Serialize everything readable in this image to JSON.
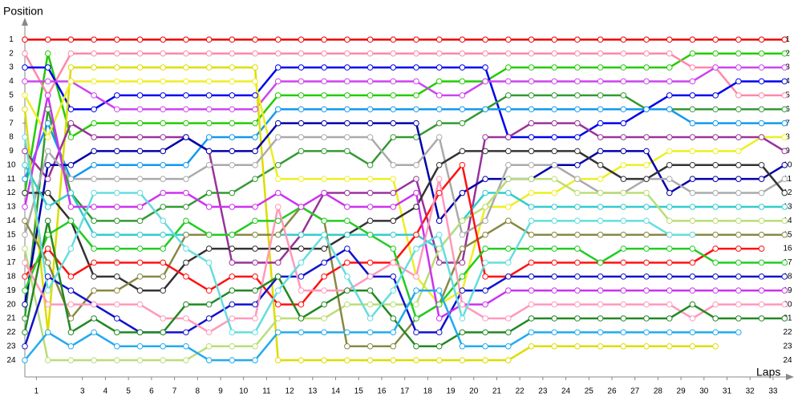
{
  "chart_data": {
    "type": "line",
    "ylabel": "Position",
    "xlabel": "Laps",
    "x": [
      0,
      1,
      2,
      3,
      4,
      5,
      6,
      7,
      8,
      9,
      10,
      11,
      12,
      13,
      14,
      15,
      16,
      17,
      18,
      19,
      20,
      21,
      22,
      23,
      24,
      25,
      26,
      27,
      28,
      29,
      30,
      31,
      32,
      33
    ],
    "xlim": [
      0,
      33.2
    ],
    "ylim": [
      25.2,
      -0.4
    ],
    "xticks": [
      {
        "value": 0.5,
        "label": "1"
      },
      {
        "value": 2.5,
        "label": "3"
      },
      {
        "value": 3.5,
        "label": "4"
      },
      {
        "value": 4.5,
        "label": "5"
      },
      {
        "value": 5.5,
        "label": "6"
      },
      {
        "value": 6.5,
        "label": "7"
      },
      {
        "value": 7.5,
        "label": "8"
      },
      {
        "value": 8.5,
        "label": "9"
      },
      {
        "value": 9.5,
        "label": "10"
      },
      {
        "value": 10.5,
        "label": "11"
      },
      {
        "value": 11.5,
        "label": "12"
      },
      {
        "value": 12.5,
        "label": "13"
      },
      {
        "value": 13.5,
        "label": "14"
      },
      {
        "value": 14.5,
        "label": "15"
      },
      {
        "value": 15.5,
        "label": "16"
      },
      {
        "value": 16.5,
        "label": "17"
      },
      {
        "value": 17.5,
        "label": "18"
      },
      {
        "value": 18.5,
        "label": "19"
      },
      {
        "value": 19.5,
        "label": "20"
      },
      {
        "value": 20.5,
        "label": "21"
      },
      {
        "value": 21.5,
        "label": "22"
      },
      {
        "value": 22.5,
        "label": "23"
      },
      {
        "value": 23.5,
        "label": "24"
      },
      {
        "value": 24.5,
        "label": "25"
      },
      {
        "value": 25.5,
        "label": "26"
      },
      {
        "value": 26.5,
        "label": "27"
      },
      {
        "value": 27.5,
        "label": "28"
      },
      {
        "value": 28.5,
        "label": "29"
      },
      {
        "value": 29.5,
        "label": "30"
      },
      {
        "value": 30.5,
        "label": "31"
      },
      {
        "value": 31.5,
        "label": "32"
      },
      {
        "value": 32.5,
        "label": "33"
      }
    ],
    "yticks": [
      1,
      2,
      3,
      4,
      5,
      6,
      7,
      8,
      9,
      10,
      11,
      12,
      13,
      14,
      15,
      16,
      17,
      18,
      19,
      20,
      21,
      22,
      23,
      24
    ],
    "series": [
      {
        "color": "#ee0000",
        "values": [
          1,
          1,
          1,
          1,
          1,
          1,
          1,
          1,
          1,
          1,
          1,
          1,
          1,
          1,
          1,
          1,
          1,
          1,
          1,
          1,
          1,
          1,
          1,
          1,
          1,
          1,
          1,
          1,
          1,
          1,
          1,
          1,
          1,
          1
        ]
      },
      {
        "color": "#22cc00",
        "values": [
          12,
          2,
          8,
          7,
          7,
          7,
          7,
          7,
          7,
          7,
          7,
          5,
          5,
          5,
          5,
          5,
          5,
          5,
          4,
          4,
          4,
          3,
          3,
          3,
          3,
          3,
          3,
          3,
          3,
          2,
          2,
          2,
          2,
          2
        ]
      },
      {
        "color": "#ff88aa",
        "values": [
          2,
          5,
          2,
          2,
          2,
          2,
          2,
          2,
          2,
          2,
          2,
          2,
          2,
          2,
          2,
          2,
          2,
          2,
          2,
          2,
          2,
          2,
          2,
          2,
          2,
          2,
          2,
          2,
          2,
          3,
          3,
          5,
          5,
          5
        ]
      },
      {
        "color": "#0000ee",
        "values": [
          3,
          3,
          6,
          6,
          5,
          5,
          5,
          5,
          5,
          5,
          5,
          3,
          3,
          3,
          3,
          3,
          3,
          3,
          3,
          3,
          3,
          8,
          8,
          8,
          8,
          7,
          7,
          6,
          5,
          5,
          5,
          4,
          4,
          4
        ]
      },
      {
        "color": "#cc44ee",
        "values": [
          4,
          4,
          4,
          5,
          6,
          6,
          6,
          6,
          6,
          6,
          6,
          4,
          4,
          4,
          4,
          4,
          4,
          4,
          5,
          5,
          4,
          4,
          4,
          4,
          4,
          4,
          4,
          4,
          4,
          4,
          3,
          3,
          3,
          3
        ]
      },
      {
        "color": "#339933",
        "values": [
          21,
          6,
          12,
          14,
          14,
          14,
          13,
          13,
          12,
          12,
          11,
          10,
          9,
          9,
          9,
          10,
          8,
          8,
          7,
          7,
          6,
          5,
          5,
          5,
          5,
          5,
          5,
          6,
          6,
          6,
          6,
          6,
          6,
          6
        ]
      },
      {
        "color": "#1199ee",
        "values": [
          11,
          7,
          11,
          10,
          10,
          10,
          10,
          10,
          8,
          8,
          8,
          6,
          6,
          6,
          6,
          6,
          6,
          6,
          6,
          6,
          6,
          6,
          6,
          6,
          6,
          6,
          6,
          6,
          6,
          7,
          7,
          7,
          7,
          7
        ]
      },
      {
        "color": "#dddd00",
        "values": [
          6,
          22,
          3,
          3,
          3,
          3,
          3,
          3,
          3,
          3,
          3,
          24,
          24,
          24,
          24,
          24,
          24,
          24,
          24,
          24,
          24,
          24,
          23,
          23,
          23,
          23,
          23,
          23,
          23,
          23,
          23,
          null,
          null,
          null
        ]
      },
      {
        "color": "#eeee22",
        "values": [
          5,
          8,
          4,
          4,
          4,
          4,
          4,
          4,
          4,
          4,
          4,
          11,
          11,
          11,
          11,
          11,
          11,
          18,
          20,
          19,
          13,
          13,
          12,
          12,
          11,
          11,
          10,
          10,
          9,
          9,
          9,
          9,
          8,
          8
        ]
      },
      {
        "color": "#993399",
        "values": [
          9,
          11,
          7,
          8,
          8,
          8,
          8,
          8,
          9,
          17,
          17,
          17,
          15,
          12,
          12,
          12,
          12,
          11,
          17,
          17,
          8,
          8,
          7,
          7,
          7,
          8,
          8,
          8,
          8,
          8,
          8,
          8,
          8,
          9
        ]
      },
      {
        "color": "#0000aa",
        "values": [
          20,
          10,
          10,
          9,
          9,
          9,
          9,
          8,
          9,
          9,
          9,
          7,
          7,
          7,
          7,
          7,
          7,
          7,
          14,
          12,
          11,
          11,
          11,
          10,
          10,
          9,
          9,
          9,
          12,
          11,
          11,
          11,
          11,
          10
        ]
      },
      {
        "color": "#aaaaaa",
        "values": [
          15,
          9,
          11,
          11,
          11,
          11,
          11,
          11,
          10,
          10,
          10,
          8,
          8,
          8,
          8,
          8,
          10,
          10,
          8,
          15,
          14,
          10,
          10,
          10,
          11,
          12,
          12,
          11,
          11,
          12,
          12,
          12,
          12,
          11
        ]
      },
      {
        "color": "#333333",
        "values": [
          12,
          12,
          14,
          18,
          18,
          19,
          19,
          17,
          16,
          16,
          16,
          16,
          16,
          16,
          15,
          14,
          14,
          13,
          10,
          9,
          9,
          9,
          9,
          9,
          9,
          10,
          11,
          11,
          10,
          10,
          10,
          10,
          10,
          12
        ]
      },
      {
        "color": "#33cccc",
        "values": [
          10,
          13,
          12,
          15,
          15,
          15,
          15,
          15,
          15,
          15,
          15,
          15,
          15,
          15,
          15,
          15,
          15,
          15,
          16,
          14,
          12,
          12,
          13,
          13,
          13,
          13,
          13,
          13,
          13,
          13,
          13,
          13,
          13,
          13
        ]
      },
      {
        "color": "#bbdd77",
        "values": [
          16,
          24,
          24,
          24,
          24,
          24,
          24,
          24,
          23,
          23,
          23,
          21,
          21,
          21,
          20,
          20,
          20,
          20,
          16,
          14,
          13,
          11,
          11,
          11,
          12,
          12,
          12,
          12,
          14,
          14,
          14,
          14,
          14,
          14
        ]
      },
      {
        "color": "#888844",
        "values": [
          14,
          17,
          21,
          19,
          19,
          18,
          18,
          15,
          15,
          15,
          15,
          15,
          13,
          14,
          23,
          23,
          23,
          21,
          20,
          16,
          15,
          14,
          15,
          15,
          15,
          15,
          15,
          15,
          15,
          15,
          15,
          15,
          15,
          15
        ]
      },
      {
        "color": "#ff1111",
        "values": [
          18,
          16,
          18,
          17,
          17,
          17,
          17,
          18,
          19,
          18,
          18,
          20,
          20,
          18,
          17,
          17,
          17,
          15,
          12,
          10,
          18,
          18,
          17,
          17,
          17,
          17,
          17,
          17,
          17,
          17,
          16,
          16,
          16,
          null
        ]
      },
      {
        "color": "#22cc22",
        "values": [
          19,
          15,
          14,
          16,
          16,
          16,
          16,
          14,
          15,
          15,
          14,
          14,
          13,
          14,
          14,
          15,
          16,
          21,
          20,
          18,
          16,
          16,
          16,
          16,
          16,
          17,
          16,
          16,
          16,
          16,
          17,
          17,
          17,
          17
        ]
      },
      {
        "color": "#1111cc",
        "values": [
          23,
          18,
          19,
          20,
          21,
          22,
          22,
          22,
          21,
          20,
          20,
          18,
          18,
          17,
          16,
          18,
          18,
          22,
          22,
          19,
          19,
          18,
          18,
          18,
          18,
          18,
          18,
          18,
          18,
          18,
          18,
          18,
          18,
          18
        ]
      },
      {
        "color": "#cc33ee",
        "values": [
          13,
          5,
          13,
          13,
          13,
          13,
          12,
          12,
          13,
          13,
          13,
          12,
          13,
          12,
          13,
          13,
          13,
          12,
          21,
          20,
          20,
          19,
          19,
          19,
          19,
          19,
          19,
          19,
          19,
          19,
          19,
          19,
          19,
          19
        ]
      },
      {
        "color": "#ff99bb",
        "values": [
          17,
          20,
          20,
          20,
          20,
          20,
          21,
          21,
          22,
          21,
          21,
          13,
          19,
          19,
          19,
          18,
          17,
          18,
          11,
          20,
          21,
          21,
          20,
          20,
          20,
          20,
          20,
          20,
          20,
          21,
          20,
          20,
          20,
          20
        ]
      },
      {
        "color": "#228822",
        "values": [
          22,
          14,
          22,
          21,
          22,
          22,
          22,
          20,
          20,
          19,
          19,
          18,
          21,
          20,
          19,
          19,
          21,
          23,
          23,
          22,
          22,
          22,
          21,
          21,
          21,
          21,
          21,
          21,
          21,
          20,
          21,
          21,
          21,
          21
        ]
      },
      {
        "color": "#22aaee",
        "values": [
          24,
          22,
          23,
          22,
          23,
          23,
          23,
          23,
          24,
          24,
          24,
          22,
          22,
          22,
          22,
          22,
          22,
          19,
          19,
          23,
          23,
          23,
          22,
          22,
          22,
          22,
          22,
          22,
          22,
          22,
          22,
          22,
          null,
          null
        ]
      },
      {
        "color": "#66dddd",
        "values": [
          8,
          19,
          16,
          12,
          12,
          12,
          14,
          16,
          17,
          22,
          22,
          19,
          17,
          15,
          18,
          21,
          19,
          16,
          15,
          21,
          17,
          17,
          14,
          14,
          14,
          14,
          14,
          14,
          15,
          15,
          null,
          null,
          null,
          null
        ]
      }
    ]
  }
}
